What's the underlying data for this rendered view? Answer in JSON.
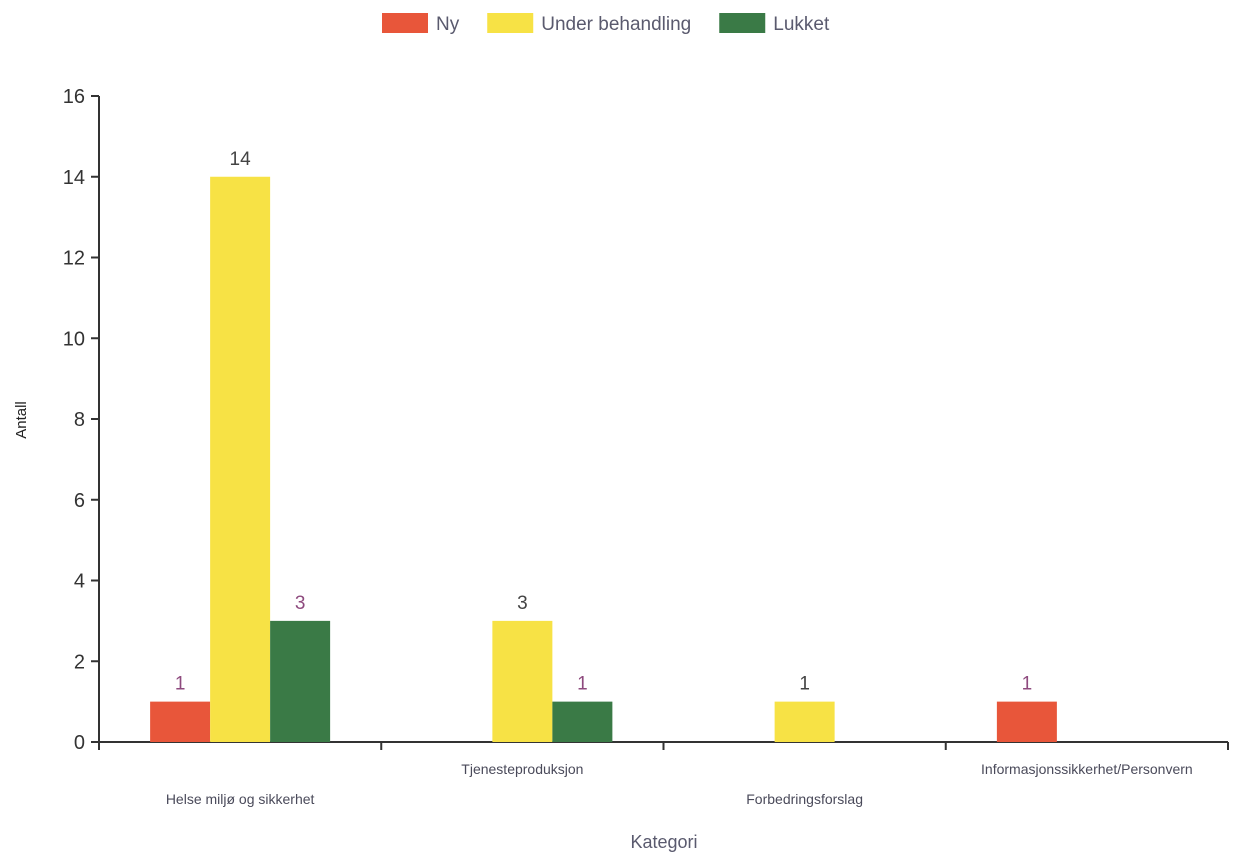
{
  "chart_data": {
    "type": "bar",
    "categories": [
      "Helse miljø og sikkerhet",
      "Tjenesteproduksjon",
      "Forbedringsforslag",
      "Informasjonssikkerhet/Personvern"
    ],
    "series": [
      {
        "name": "Ny",
        "color": "#e8563a",
        "values": [
          1,
          0,
          0,
          1
        ]
      },
      {
        "name": "Under behandling",
        "color": "#f7e245",
        "values": [
          14,
          3,
          1,
          0
        ]
      },
      {
        "name": "Lukket",
        "color": "#3a7a46",
        "values": [
          3,
          1,
          0,
          0
        ]
      }
    ],
    "xlabel": "Kategori",
    "ylabel": "Antall",
    "ylim": [
      0,
      16
    ],
    "yticks": [
      0,
      2,
      4,
      6,
      8,
      10,
      12,
      14,
      16
    ],
    "legend_position": "top",
    "grid": false,
    "data_label_colors": {
      "Ny": "#8e4a7e",
      "Under behandling": "#444444",
      "Lukket": "#8e4a7e"
    }
  }
}
